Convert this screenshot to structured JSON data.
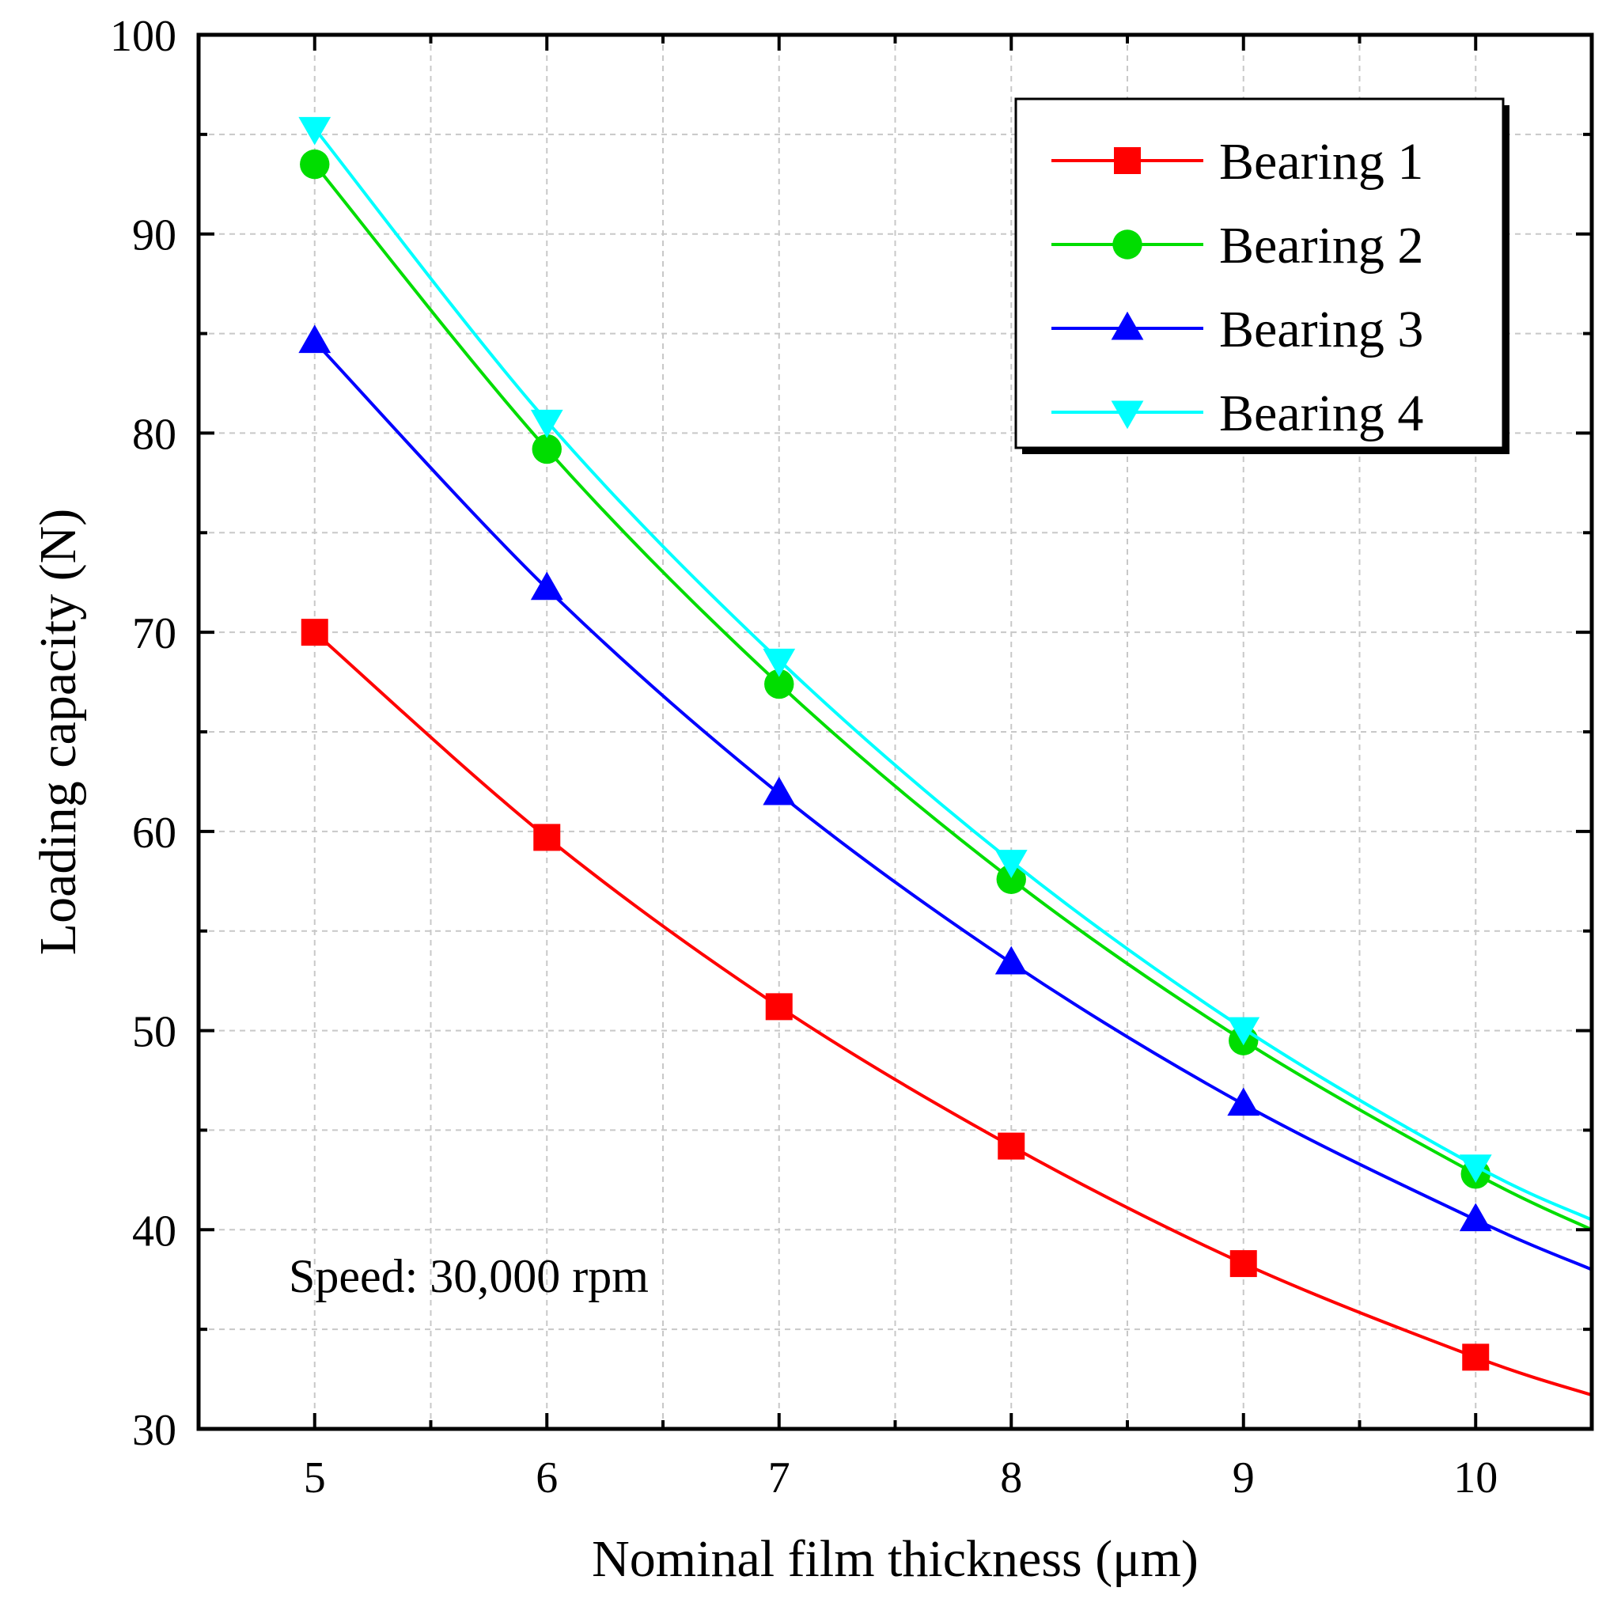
{
  "chart_data": {
    "type": "line",
    "title": "",
    "xlabel": "Nominal film thickness (μm)",
    "ylabel": "Loading capacity (N)",
    "xlim": [
      4.5,
      10.5
    ],
    "ylim": [
      30,
      100
    ],
    "xticks": [
      5,
      6,
      7,
      8,
      9,
      10
    ],
    "yticks": [
      30,
      40,
      50,
      60,
      70,
      80,
      90,
      100
    ],
    "grid": true,
    "legend_position": "top-right",
    "annotation": "Speed: 30,000 rpm",
    "x": [
      5,
      6,
      7,
      8,
      9,
      10
    ],
    "series": [
      {
        "name": "Bearing 1",
        "color": "#ff0000",
        "marker": "square",
        "values": [
          70.0,
          59.7,
          51.2,
          44.2,
          38.3,
          33.6
        ],
        "end_value": 31.7
      },
      {
        "name": "Bearing 2",
        "color": "#00dd00",
        "marker": "circle",
        "values": [
          93.5,
          79.2,
          67.4,
          57.6,
          49.5,
          42.8
        ],
        "end_value": 40.0
      },
      {
        "name": "Bearing 3",
        "color": "#0000ff",
        "marker": "triangle-up",
        "values": [
          84.6,
          72.2,
          61.9,
          53.4,
          46.3,
          40.5
        ],
        "end_value": 38.0
      },
      {
        "name": "Bearing 4",
        "color": "#00ffff",
        "marker": "triangle-down",
        "values": [
          95.3,
          80.6,
          68.6,
          58.5,
          50.1,
          43.2
        ],
        "end_value": 40.5
      }
    ]
  }
}
